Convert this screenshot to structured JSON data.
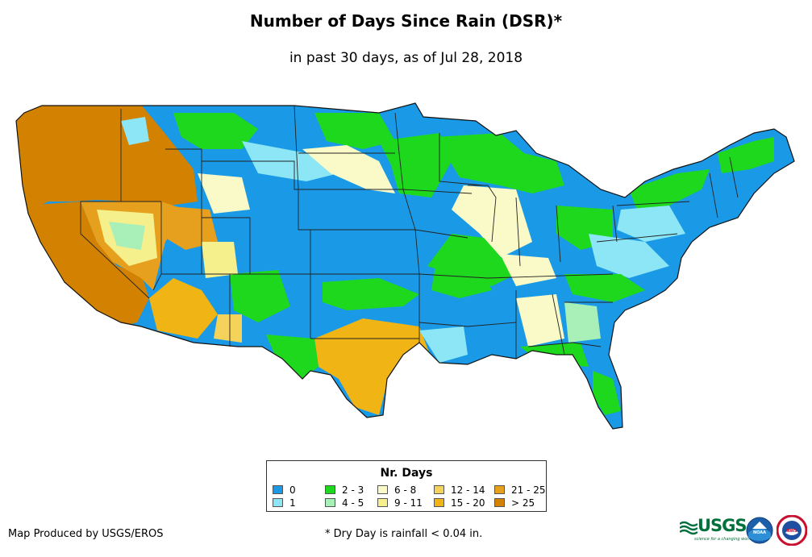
{
  "header": {
    "title": "Number of Days Since Rain (DSR)*",
    "subtitle": "in past 30 days, as of Jul 28, 2018"
  },
  "legend": {
    "title": "Nr. Days",
    "classes": [
      {
        "label": "0",
        "color": "#1a9ae6"
      },
      {
        "label": "1",
        "color": "#8ce6f5"
      },
      {
        "label": "2 - 3",
        "color": "#1ed81e"
      },
      {
        "label": "4 - 5",
        "color": "#a8f0b8"
      },
      {
        "label": "6 - 8",
        "color": "#fafac8"
      },
      {
        "label": "9 - 11",
        "color": "#f5f08c"
      },
      {
        "label": "12 - 14",
        "color": "#f5d25a"
      },
      {
        "label": "15 - 20",
        "color": "#f0b414"
      },
      {
        "label": "21 - 25",
        "color": "#e6a01e"
      },
      {
        "label": "> 25",
        "color": "#d28200"
      }
    ]
  },
  "footer": {
    "credit": "Map Produced by USGS/EROS",
    "footnote": "* Dry Day is rainfall < 0.04 in."
  },
  "logos": {
    "usgs_text": "USGS",
    "usgs_tagline": "science for a changing world",
    "noaa_text": "NOAA",
    "nws_text": "NWS"
  }
}
